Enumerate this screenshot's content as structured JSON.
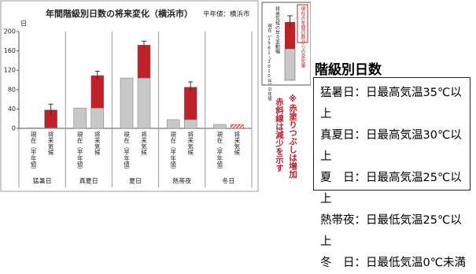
{
  "chart_data": {
    "type": "bar",
    "title": "年間階級別日数の将来変化（横浜市）",
    "subtitle": "平年値：横浜市",
    "y_label": "日",
    "categories": [
      "猛暑日",
      "真夏日",
      "夏日",
      "熱帯夜",
      "冬日"
    ],
    "bar_labels": [
      "現在（平年値）",
      "将来気候"
    ],
    "series": [
      {
        "name": "現在（1981～2010年）平年値",
        "color": "#c8c8c8",
        "values": [
          1,
          42,
          104,
          18,
          8
        ]
      },
      {
        "name": "現在の年間日数からの変化量",
        "color": "#c0202a",
        "values": [
          37,
          67,
          68,
          67,
          8
        ]
      }
    ],
    "future_base_values": [
      1,
      42,
      104,
      18,
      0
    ],
    "hatched": [
      false,
      false,
      false,
      false,
      true
    ],
    "error_low": [
      28,
      100,
      165,
      76,
      null
    ],
    "error_high": [
      50,
      118,
      180,
      96,
      null
    ],
    "error_label": "将来気候の年々変動幅",
    "ylim": [
      0,
      200
    ],
    "yticks": [
      0,
      40,
      80,
      120,
      160,
      200
    ],
    "grid": false,
    "note": [
      "※赤塗りつぶしは増加",
      "赤斜線は減少を示す"
    ]
  },
  "definitions": {
    "title": "階級別日数",
    "items": [
      "猛暑日：日最高気温35℃以上",
      "真夏日：日最高気温30℃以上",
      "夏　日：日最高気温25℃以上",
      "熱帯夜：日最低気温25℃以上",
      "冬　日：日最低気温0℃未満"
    ]
  }
}
